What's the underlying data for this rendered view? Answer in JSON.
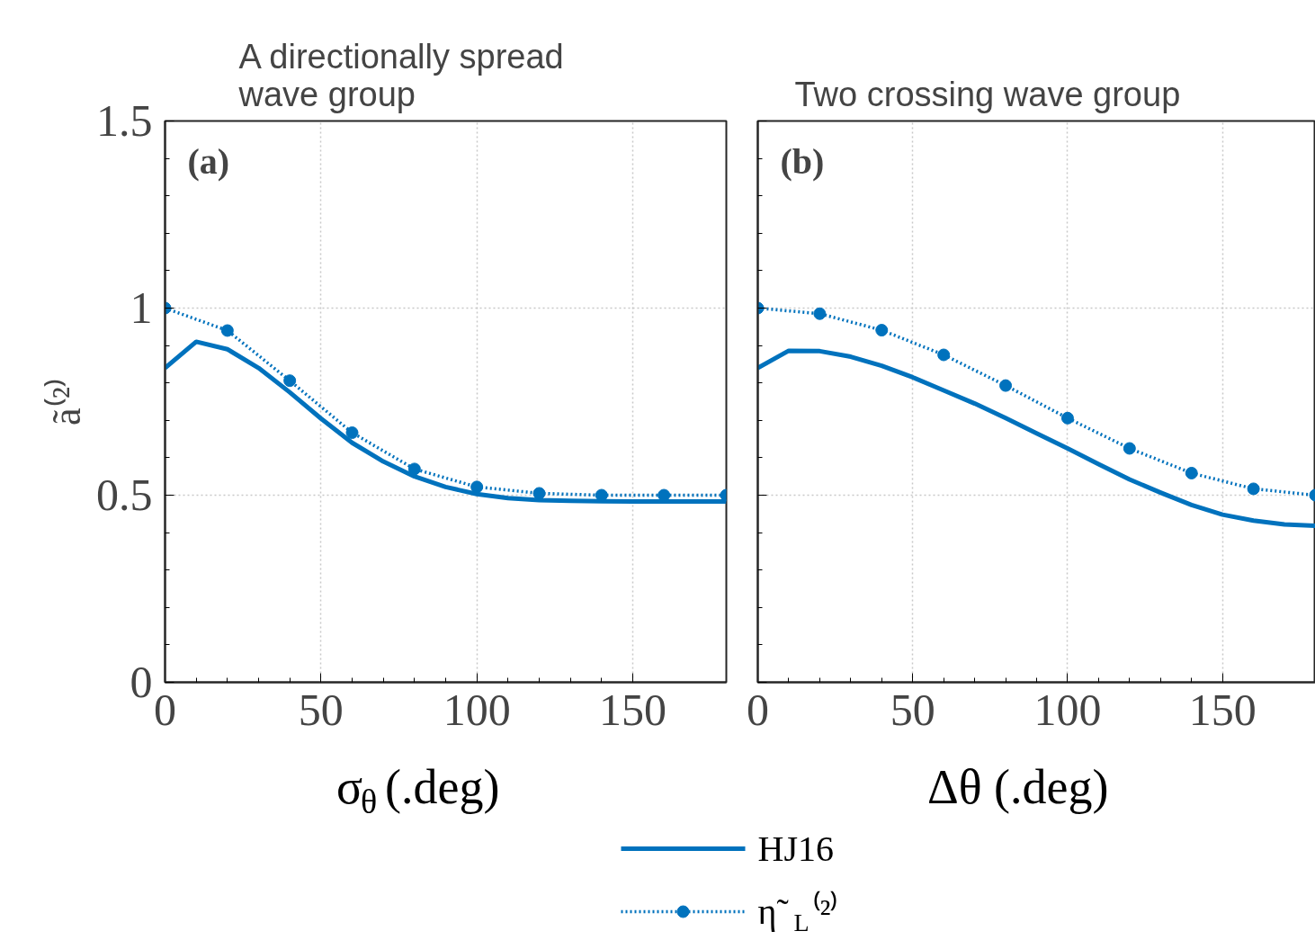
{
  "chart_data": [
    {
      "type": "line",
      "title": "A directionally spread wave group",
      "xlabel": "σ$_{θ}$ (.deg)",
      "ylabel": "ã⁽²⁾",
      "xlim": [
        0,
        180
      ],
      "ylim": [
        0,
        1.5
      ],
      "xticks": [
        0,
        50,
        100,
        150
      ],
      "yticks": [
        0,
        0.5,
        1,
        1.5
      ],
      "grid": true,
      "legend": "bottom",
      "annotations": [
        "(a)"
      ],
      "series": [
        {
          "name": "HJ16",
          "color": "#0072bd",
          "line_style": "solid",
          "marker": "none",
          "x": [
            0,
            10,
            20,
            30,
            40,
            50,
            60,
            70,
            80,
            90,
            100,
            110,
            120,
            130,
            140,
            150,
            160,
            170,
            180
          ],
          "values": [
            0.84,
            0.91,
            0.89,
            0.84,
            0.775,
            0.705,
            0.64,
            0.59,
            0.55,
            0.522,
            0.503,
            0.492,
            0.487,
            0.485,
            0.484,
            0.483,
            0.483,
            0.483,
            0.483
          ]
        },
        {
          "name": "η̃$_{L}$⁽²⁾",
          "color": "#0072bd",
          "line_style": "dotted",
          "marker": "circle",
          "x": [
            0,
            20,
            40,
            60,
            80,
            100,
            120,
            140,
            160,
            180
          ],
          "values": [
            1.0,
            0.94,
            0.806,
            0.667,
            0.57,
            0.522,
            0.505,
            0.5,
            0.5,
            0.5
          ]
        }
      ]
    },
    {
      "type": "line",
      "title": "Two crossing wave group",
      "xlabel": "Δθ (.deg)",
      "xlim": [
        0,
        180
      ],
      "ylim": [
        0,
        1.5
      ],
      "xticks": [
        0,
        50,
        100,
        150
      ],
      "yticks": [
        0,
        0.5,
        1,
        1.5
      ],
      "grid": true,
      "tick_labels": "x",
      "annotations": [
        "(b)"
      ],
      "series": [
        {
          "color": "#0072bd",
          "line_style": "solid",
          "marker": "none",
          "x": [
            0,
            10,
            20,
            30,
            40,
            50,
            60,
            70,
            80,
            90,
            100,
            110,
            120,
            130,
            140,
            150,
            160,
            170,
            180
          ],
          "values": [
            0.84,
            0.886,
            0.885,
            0.87,
            0.846,
            0.815,
            0.78,
            0.745,
            0.706,
            0.665,
            0.625,
            0.583,
            0.542,
            0.507,
            0.474,
            0.448,
            0.432,
            0.422,
            0.418
          ]
        },
        {
          "color": "#0072bd",
          "line_style": "dotted",
          "marker": "circle",
          "x": [
            0,
            20,
            40,
            60,
            80,
            100,
            120,
            140,
            160,
            180
          ],
          "values": [
            1.0,
            0.985,
            0.941,
            0.875,
            0.793,
            0.706,
            0.625,
            0.559,
            0.517,
            0.5
          ]
        }
      ]
    }
  ]
}
